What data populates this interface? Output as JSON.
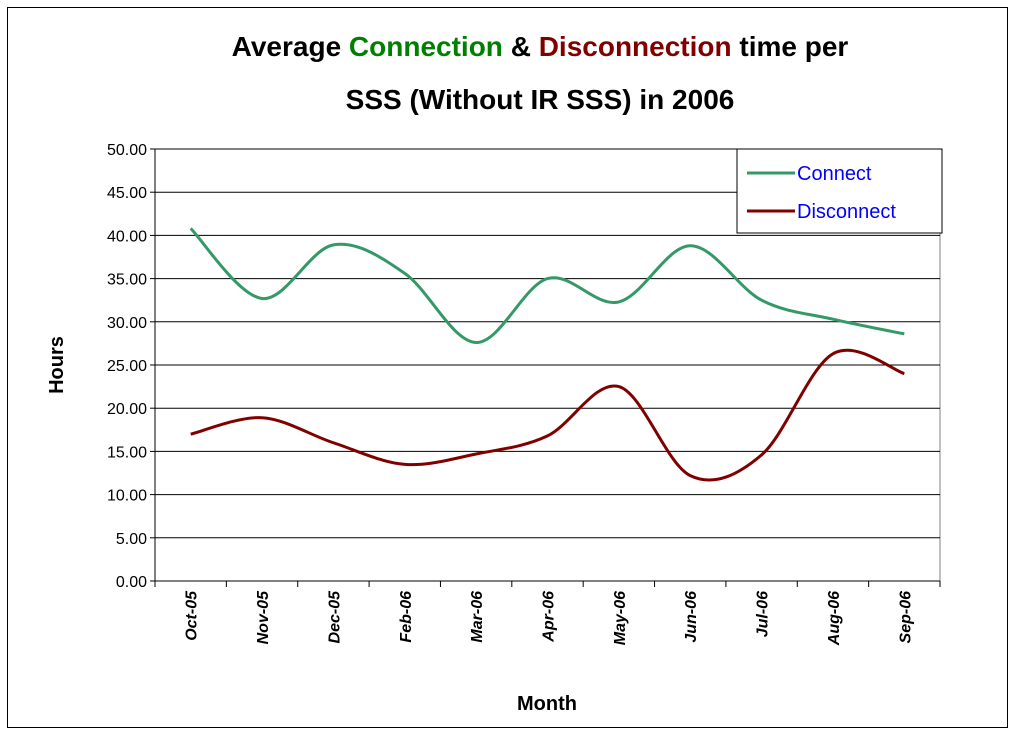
{
  "chart_data": {
    "type": "line",
    "title_lines": [
      [
        {
          "text": "Average ",
          "color": "#000000"
        },
        {
          "text": "Connection",
          "color": "#008000"
        },
        {
          "text": " & ",
          "color": "#000000"
        },
        {
          "text": "Disconnection",
          "color": "#800000"
        },
        {
          "text": " time per",
          "color": "#000000"
        }
      ],
      [
        {
          "text": "SSS (Without IR SSS) in 2006",
          "color": "#000000"
        }
      ]
    ],
    "x_label": "Month",
    "y_label": "Hours",
    "categories": [
      "Oct-05",
      "Nov-05",
      "Dec-05",
      "Feb-06",
      "Mar-06",
      "Apr-06",
      "May-06",
      "Jun-06",
      "Jul-06",
      "Aug-06",
      "Sep-06"
    ],
    "series": [
      {
        "name": "Connect",
        "color": "#339966",
        "values": [
          40.8,
          32.7,
          38.9,
          35.6,
          27.6,
          35.0,
          32.3,
          38.8,
          32.5,
          30.3,
          28.6
        ]
      },
      {
        "name": "Disconnect",
        "color": "#800000",
        "values": [
          17.0,
          18.9,
          16.0,
          13.5,
          14.7,
          16.8,
          22.5,
          12.2,
          14.6,
          26.3,
          24.0
        ]
      }
    ],
    "ylim": [
      0,
      50
    ],
    "yticks": [
      {
        "value": 0,
        "label": "0.00"
      },
      {
        "value": 5,
        "label": "5.00"
      },
      {
        "value": 10,
        "label": "10.00"
      },
      {
        "value": 15,
        "label": "15.00"
      },
      {
        "value": 20,
        "label": "20.00"
      },
      {
        "value": 25,
        "label": "25.00"
      },
      {
        "value": 30,
        "label": "30.00"
      },
      {
        "value": 35,
        "label": "35.00"
      },
      {
        "value": 40,
        "label": "40.00"
      },
      {
        "value": 45,
        "label": "45.00"
      },
      {
        "value": 50,
        "label": "50.00"
      }
    ],
    "grid": true,
    "legend_position": "upper right",
    "legend_text_color": "#0000ff"
  }
}
